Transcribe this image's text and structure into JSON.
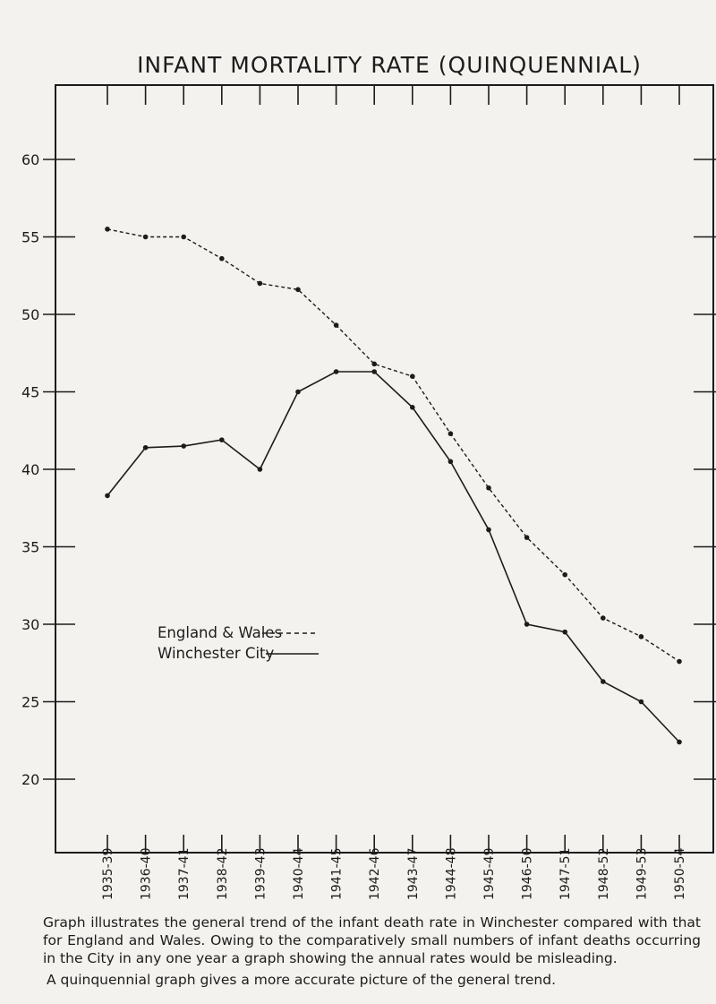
{
  "title": "INFANT MORTALITY RATE (QUINQUENNIAL)",
  "caption": {
    "paragraph1": "Graph illustrates the general trend of the infant death rate in Winchester compared with that for England and Wales. Owing to the comparatively small numbers of infant deaths occurring in the City in any one year a graph showing the annual rates would be misleading.",
    "paragraph2": "A quinquennial graph gives a more accurate picture of the general trend."
  },
  "legend": {
    "england_wales": "England & Wales",
    "winchester": "Winchester City"
  },
  "chart_data": {
    "type": "line",
    "title": "INFANT MORTALITY RATE (QUINQUENNIAL)",
    "xlabel": "",
    "ylabel": "",
    "ylim": [
      15,
      64
    ],
    "yticks": [
      20,
      25,
      30,
      35,
      40,
      45,
      50,
      55,
      60
    ],
    "categories": [
      "1935-39",
      "1936-40",
      "1937-41",
      "1938-42",
      "1939-43",
      "1940-44",
      "1941-45",
      "1942-46",
      "1943-47",
      "1944-48",
      "1945-49",
      "1946-50",
      "1947-51",
      "1948-52",
      "1949-53",
      "1950-54"
    ],
    "grid": false,
    "legend_position": "lower-left",
    "series": [
      {
        "name": "England & Wales",
        "style": "dashed",
        "color": "#1c1c1c",
        "values": [
          55.5,
          55.0,
          55.0,
          53.6,
          52.0,
          51.6,
          49.3,
          46.8,
          46.0,
          42.3,
          38.8,
          35.6,
          33.2,
          30.4,
          29.2,
          27.6
        ]
      },
      {
        "name": "Winchester City",
        "style": "solid",
        "color": "#1c1c1c",
        "values": [
          38.3,
          41.4,
          41.5,
          41.9,
          40.0,
          45.0,
          46.3,
          46.3,
          44.0,
          40.5,
          36.1,
          30.0,
          29.5,
          26.3,
          25.0,
          22.4
        ]
      }
    ]
  }
}
